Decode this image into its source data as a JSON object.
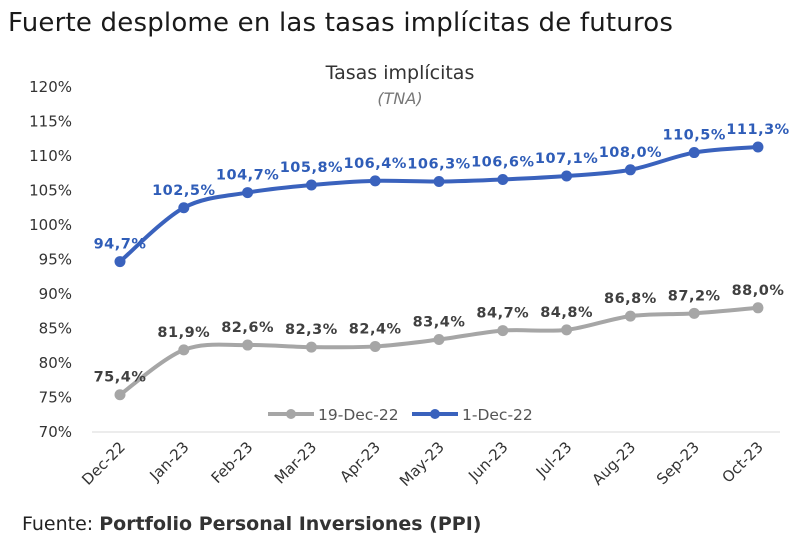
{
  "headline": "Fuerte desplome en las tasas implícitas de futuros",
  "footer": {
    "prefix": "Fuente: ",
    "source": "Portfolio Personal Inversiones (PPI)"
  },
  "chart_data": {
    "type": "line",
    "title": "Tasas implícitas",
    "subtitle": "(TNA)",
    "categories": [
      "Dec-22",
      "Jan-23",
      "Feb-23",
      "Mar-23",
      "Apr-23",
      "May-23",
      "Jun-23",
      "Jul-23",
      "Aug-23",
      "Sep-23",
      "Oct-23"
    ],
    "ylim": [
      70,
      120
    ],
    "yticks": [
      70,
      75,
      80,
      85,
      90,
      95,
      100,
      105,
      110,
      115,
      120
    ],
    "ytick_labels": [
      "70%",
      "75%",
      "80%",
      "85%",
      "90%",
      "95%",
      "100%",
      "105%",
      "110%",
      "115%",
      "120%"
    ],
    "series": [
      {
        "name": "1-Dec-22",
        "color": "#3a62bd",
        "label_color": "#2f5db8",
        "values": [
          94.7,
          102.5,
          104.7,
          105.8,
          106.4,
          106.3,
          106.6,
          107.1,
          108.0,
          110.5,
          111.3
        ],
        "labels": [
          "94,7%",
          "102,5%",
          "104,7%",
          "105,8%",
          "106,4%",
          "106,3%",
          "106,6%",
          "107,1%",
          "108,0%",
          "110,5%",
          "111,3%"
        ]
      },
      {
        "name": "19-Dec-22",
        "color": "#a6a6a6",
        "label_color": "#404040",
        "values": [
          75.4,
          81.9,
          82.6,
          82.3,
          82.4,
          83.4,
          84.7,
          84.8,
          86.8,
          87.2,
          88.0
        ],
        "labels": [
          "75,4%",
          "81,9%",
          "82,6%",
          "82,3%",
          "82,4%",
          "83,4%",
          "84,7%",
          "84,8%",
          "86,8%",
          "87,2%",
          "88,0%"
        ]
      }
    ],
    "legend": [
      "19-Dec-22",
      "1-Dec-22"
    ],
    "legend_position": "bottom-center"
  }
}
